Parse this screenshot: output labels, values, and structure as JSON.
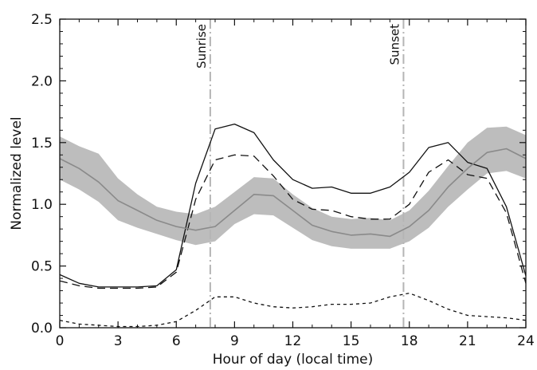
{
  "chart_data": {
    "type": "line",
    "title": "",
    "xlabel": "Hour of day (local time)",
    "ylabel": "Normalized level",
    "xlim": [
      0,
      24
    ],
    "ylim": [
      0,
      2.5
    ],
    "x_ticks": [
      0,
      3,
      6,
      9,
      12,
      15,
      18,
      21,
      24
    ],
    "y_ticks": [
      0.0,
      0.5,
      1.0,
      1.5,
      2.0,
      2.5
    ],
    "x_tick_labels": [
      "0",
      "3",
      "6",
      "9",
      "12",
      "15",
      "18",
      "21",
      "24"
    ],
    "y_tick_labels": [
      "0.0",
      "0.5",
      "1.0",
      "1.5",
      "2.0",
      "2.5"
    ],
    "grid": false,
    "annotations": [
      {
        "label": "Sunrise",
        "x": 7.75
      },
      {
        "label": "Sunset",
        "x": 17.7
      }
    ],
    "x": [
      0,
      1,
      2,
      3,
      4,
      5,
      6,
      7,
      8,
      9,
      10,
      11,
      12,
      13,
      14,
      15,
      16,
      17,
      18,
      19,
      20,
      21,
      22,
      23,
      24
    ],
    "series": [
      {
        "style": "solid",
        "color": "#111111",
        "values": [
          0.43,
          0.36,
          0.33,
          0.33,
          0.33,
          0.34,
          0.47,
          1.17,
          1.61,
          1.65,
          1.58,
          1.36,
          1.2,
          1.13,
          1.14,
          1.09,
          1.09,
          1.14,
          1.26,
          1.46,
          1.5,
          1.34,
          1.29,
          0.98,
          0.42
        ]
      },
      {
        "style": "long-dash",
        "color": "#111111",
        "values": [
          0.38,
          0.34,
          0.32,
          0.32,
          0.32,
          0.33,
          0.45,
          1.04,
          1.36,
          1.4,
          1.39,
          1.23,
          1.04,
          0.96,
          0.95,
          0.9,
          0.88,
          0.88,
          1.0,
          1.26,
          1.36,
          1.24,
          1.21,
          0.93,
          0.36
        ]
      },
      {
        "style": "short-dash",
        "color": "#111111",
        "values": [
          0.06,
          0.03,
          0.02,
          0.01,
          0.01,
          0.02,
          0.05,
          0.14,
          0.25,
          0.25,
          0.2,
          0.17,
          0.16,
          0.17,
          0.19,
          0.19,
          0.2,
          0.25,
          0.28,
          0.22,
          0.15,
          0.1,
          0.09,
          0.08,
          0.06
        ]
      },
      {
        "style": "band-mean",
        "color": "#8a8a8a",
        "values": [
          1.37,
          1.29,
          1.18,
          1.03,
          0.95,
          0.87,
          0.82,
          0.79,
          0.82,
          0.95,
          1.08,
          1.07,
          0.95,
          0.83,
          0.78,
          0.75,
          0.76,
          0.74,
          0.82,
          0.95,
          1.14,
          1.29,
          1.42,
          1.45,
          1.37
        ]
      }
    ],
    "band": {
      "color": "#bdbdbd",
      "upper": [
        1.55,
        1.47,
        1.41,
        1.21,
        1.08,
        0.98,
        0.94,
        0.92,
        0.98,
        1.1,
        1.22,
        1.21,
        1.08,
        0.97,
        0.9,
        0.88,
        0.89,
        0.87,
        0.95,
        1.11,
        1.31,
        1.5,
        1.62,
        1.63,
        1.56
      ]
    },
    "band_lower": {
      "values": [
        1.2,
        1.12,
        1.02,
        0.87,
        0.81,
        0.76,
        0.71,
        0.67,
        0.7,
        0.84,
        0.92,
        0.91,
        0.81,
        0.71,
        0.66,
        0.64,
        0.64,
        0.64,
        0.7,
        0.81,
        0.98,
        1.12,
        1.25,
        1.27,
        1.21
      ]
    }
  }
}
